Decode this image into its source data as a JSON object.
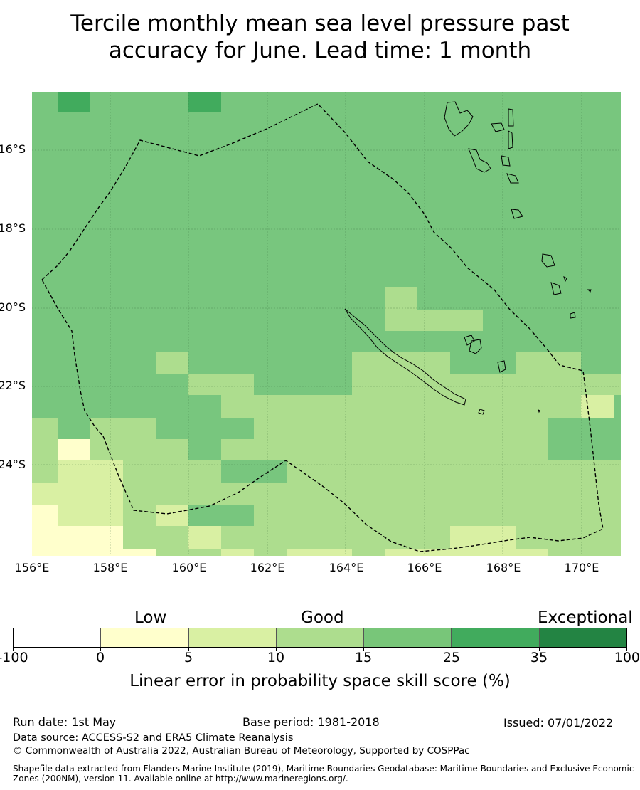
{
  "title_line1": "Tercile monthly mean sea level pressure past",
  "title_line2": "accuracy for June. Lead time: 1 month",
  "map": {
    "lat_labels": [
      "16°S",
      "18°S",
      "20°S",
      "22°S",
      "24°S"
    ],
    "lon_labels": [
      "156°E",
      "158°E",
      "160°E",
      "162°E",
      "164°E",
      "166°E",
      "168°E",
      "170°E"
    ]
  },
  "colorbar": {
    "categories": [
      "Low",
      "Good",
      "Exceptional"
    ],
    "ticks": [
      "-100",
      "0",
      "5",
      "10",
      "15",
      "25",
      "35",
      "100"
    ],
    "colors": [
      "#ffffff",
      "#ffffcc",
      "#d9f0a3",
      "#addd8e",
      "#78c679",
      "#41ab5d",
      "#238443"
    ],
    "label": "Linear error in probability space skill score (%)"
  },
  "footer": {
    "run_date": "Run date: 1st May",
    "base_period": "Base period: 1981-2018",
    "issued": "Issued: 07/01/2022",
    "data_source": "Data source: ACCESS-S2 and ERA5 Climate Reanalysis",
    "copyright": "© Commonwealth of Australia 2022, Australian Bureau of Meteorology, Supported by COSPPac",
    "shapefile_line1": "Shapefile data extracted from Flanders Marine Institute (2019), Maritime Boundaries Geodatabase: Maritime Boundaries and Exclusive Economic",
    "shapefile_line2": "Zones (200NM), version 11. Available online at http://www.marineregions.org/."
  }
}
